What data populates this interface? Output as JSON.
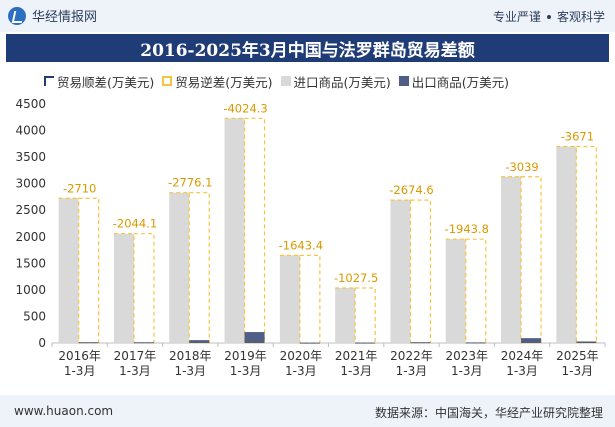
{
  "header": {
    "brand": "华经情报网",
    "tagline_left": "专业严谨",
    "tagline_right": "客观科学",
    "logo_icon": "huajing-logo-icon"
  },
  "footer": {
    "site": "www.huaon.com",
    "source": "数据来源：中国海关，华经产业研究院整理"
  },
  "colors": {
    "import": "#d9d9d9",
    "export": "#4e5e86",
    "deficit_border": "#f5c542",
    "surplus": "#1f3c77",
    "title_bg": "#1f3c77"
  },
  "chart_data": {
    "type": "bar",
    "title": "2016-2025年3月中国与法罗群岛贸易差额",
    "categories": [
      "2016年\n1-3月",
      "2017年\n1-3月",
      "2018年\n1-3月",
      "2019年\n1-3月",
      "2020年\n1-3月",
      "2021年\n1-3月",
      "2022年\n1-3月",
      "2023年\n1-3月",
      "2024年\n1-3月",
      "2025年\n1-3月"
    ],
    "series": [
      {
        "name": "贸易顺差(万美元)",
        "values": [
          null,
          null,
          null,
          null,
          null,
          null,
          null,
          null,
          null,
          null
        ]
      },
      {
        "name": "贸易逆差(万美元)",
        "values": [
          -2710,
          -2044.1,
          -2776.1,
          -4024.3,
          -1643.4,
          -1027.5,
          -2674.6,
          -1943.8,
          -3039,
          -3671
        ]
      },
      {
        "name": "进口商品(万美元)",
        "values": [
          2725,
          2058,
          2830,
          4230,
          1650,
          1035,
          2690,
          1955,
          3130,
          3700
        ]
      },
      {
        "name": "出口商品(万美元)",
        "values": [
          15,
          14,
          54,
          206,
          7,
          8,
          15,
          11,
          91,
          29
        ]
      }
    ],
    "data_labels": [
      "-2710",
      "-2044.1",
      "-2776.1",
      "-4024.3",
      "-1643.4",
      "-1027.5",
      "-2674.6",
      "-1943.8",
      "-3039",
      "-3671"
    ],
    "yticks": [
      "0",
      "500",
      "1000",
      "1500",
      "2000",
      "2500",
      "3000",
      "3500",
      "4000",
      "4500"
    ],
    "ylim": [
      0,
      4500
    ],
    "xlabel": "",
    "ylabel": "",
    "grid": false,
    "legend_position": "top-left"
  }
}
